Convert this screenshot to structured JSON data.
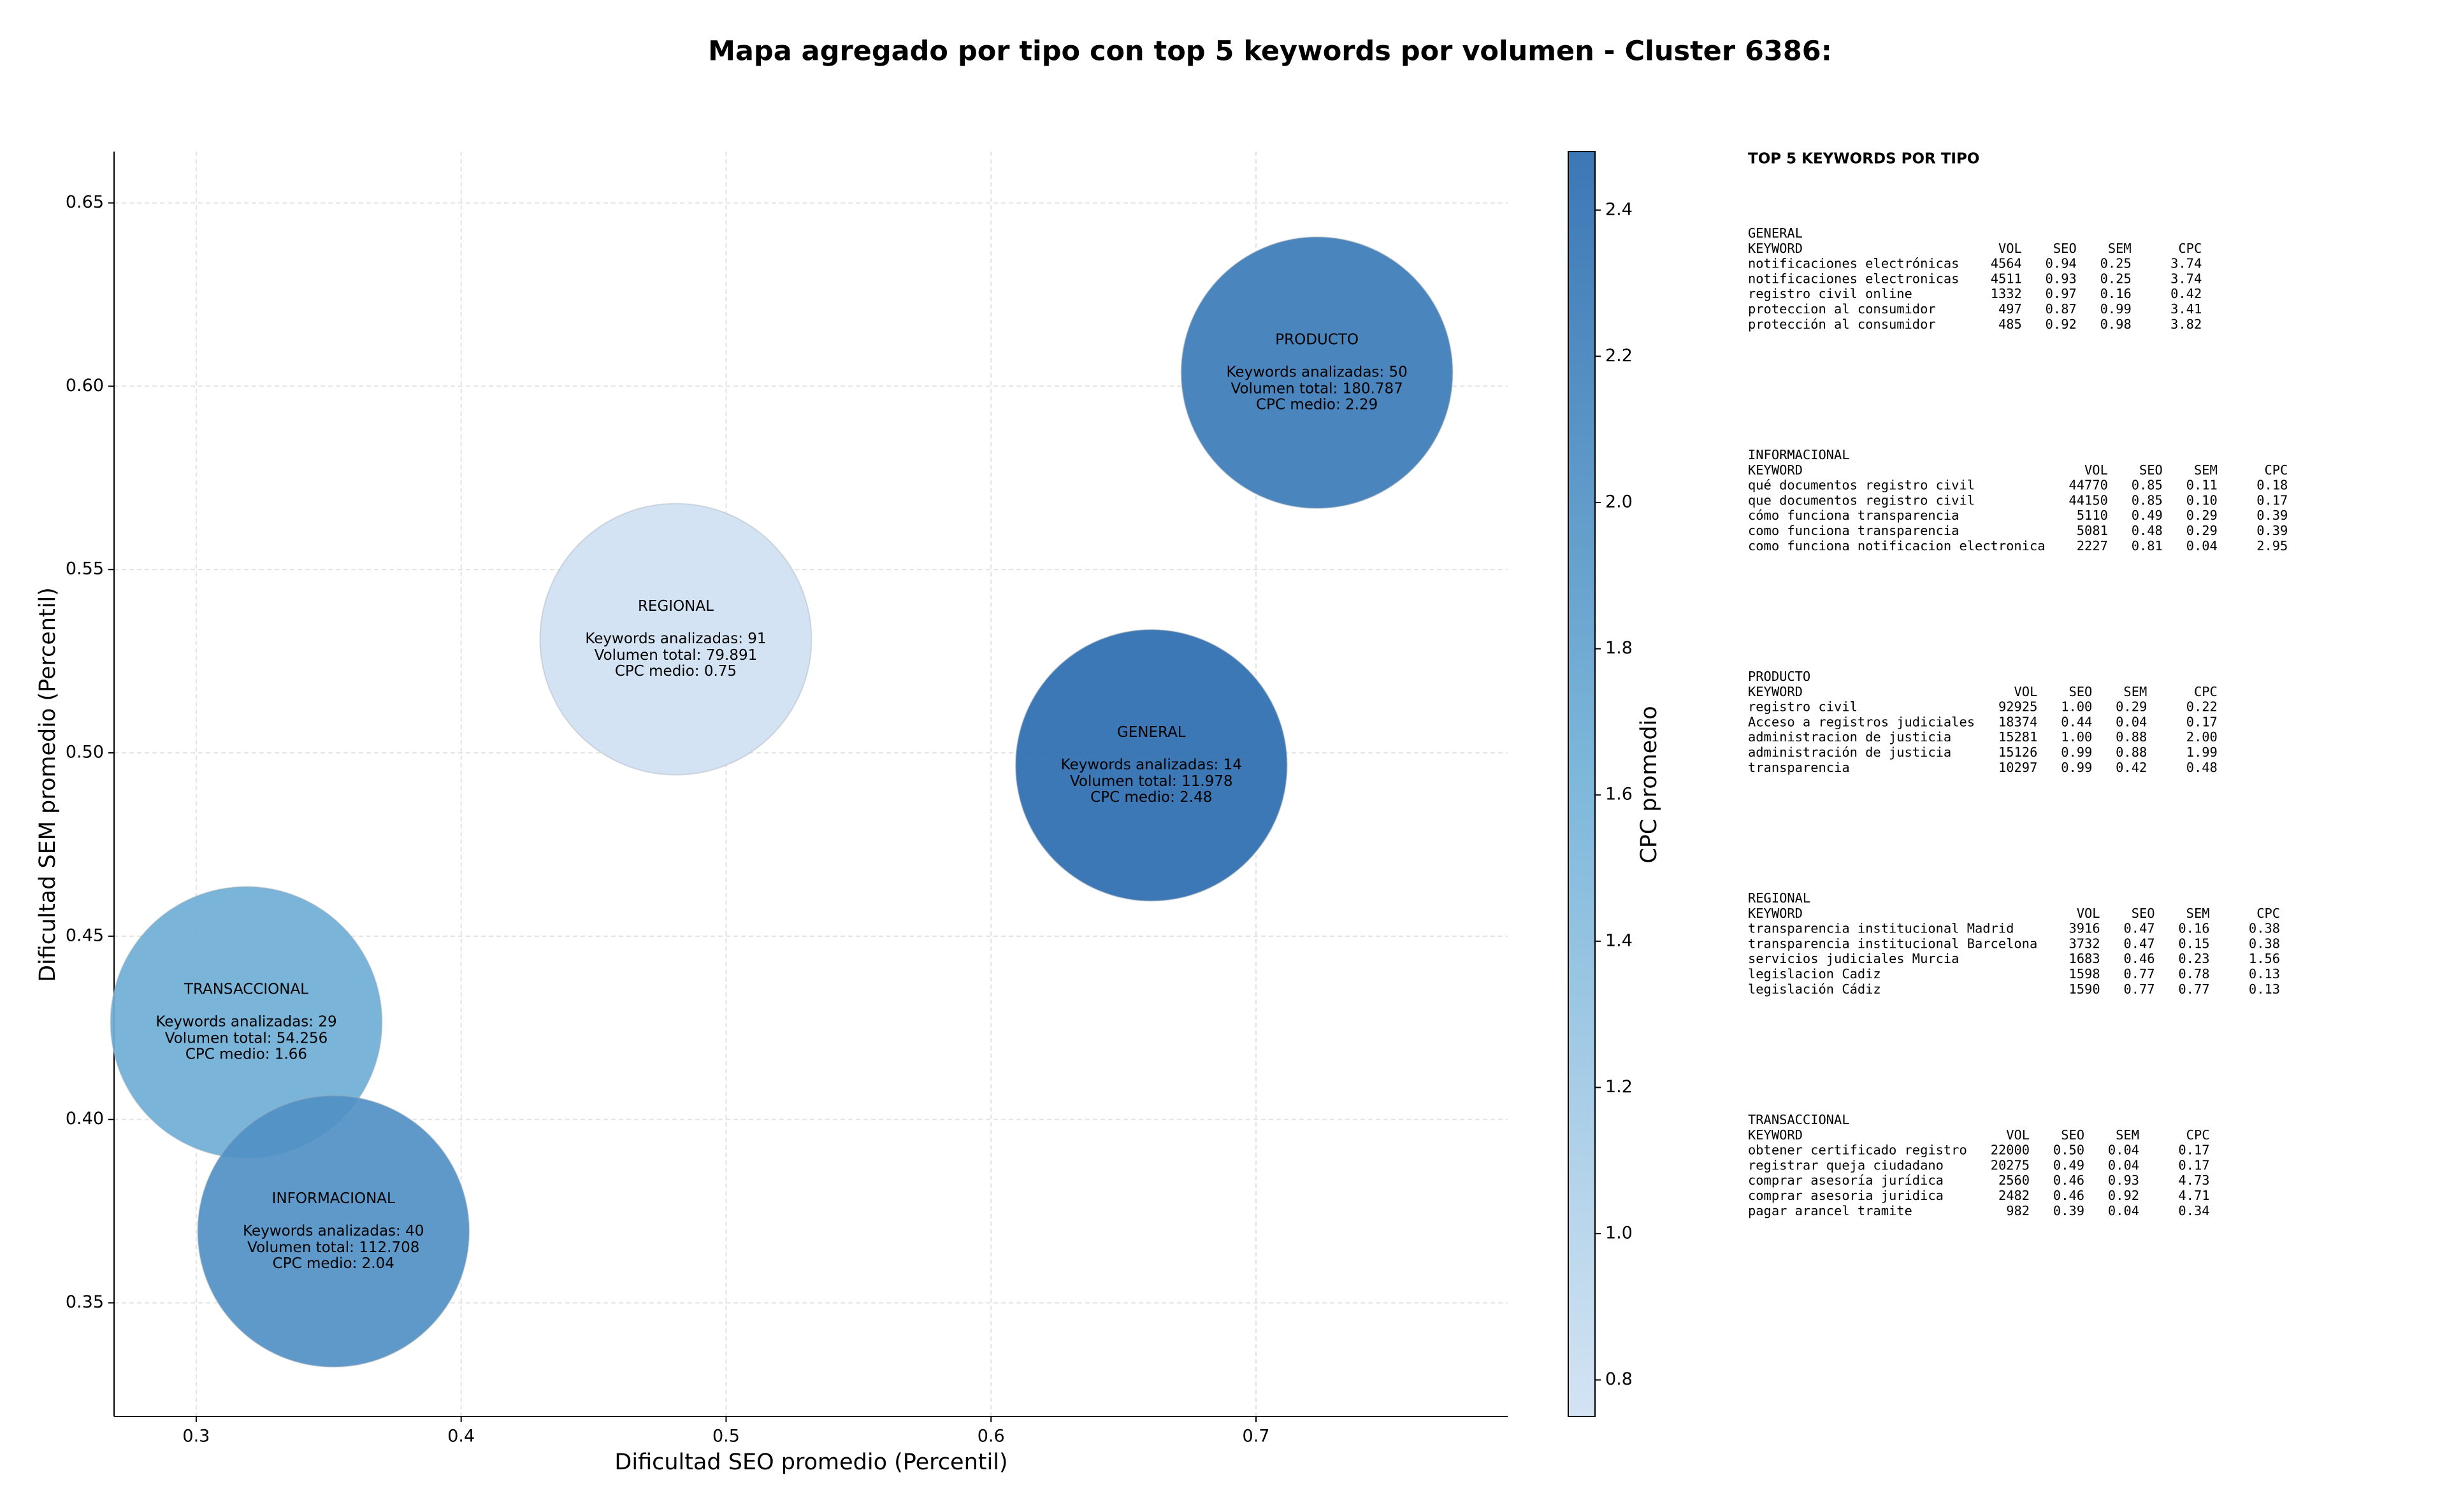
{
  "chart_data": {
    "type": "bubble",
    "title": "Mapa agregado por tipo con top 5 keywords por volumen - Cluster 6386:",
    "xlabel": "Dificultad SEO promedio (Percentil)",
    "ylabel": "Dificultad SEM promedio (Percentil)",
    "xlim": [
      0.269,
      0.795
    ],
    "ylim": [
      0.319,
      0.664
    ],
    "xticks": [
      0.3,
      0.4,
      0.5,
      0.6,
      0.7
    ],
    "yticks": [
      0.35,
      {
        "value": 0.4,
        "label": "0.40"
      },
      0.45,
      {
        "value": 0.5,
        "label": "0.50"
      },
      0.55,
      {
        "value": 0.6,
        "label": "0.60"
      },
      0.65
    ],
    "grid": true,
    "categories": [
      "GENERAL",
      "PRODUCTO",
      "REGIONAL",
      "TRANSACCIONAL",
      "INFORMACIONAL"
    ],
    "x": [
      0.6605,
      0.723,
      0.481,
      0.3189,
      0.3518
    ],
    "y": [
      0.4966,
      0.6037,
      0.531,
      0.4265,
      0.3695
    ],
    "cpc": [
      2.48,
      2.29,
      0.75,
      1.66,
      2.04
    ],
    "keywords_labels": [
      "Keywords analizadas: 14",
      "Keywords analizadas: 50",
      "Keywords analizadas: 91",
      "Keywords analizadas: 29",
      "Keywords analizadas: 40"
    ],
    "volume_labels": [
      "Volumen total: 11.978",
      "Volumen total: 180.787",
      "Volumen total: 79.891",
      "Volumen total: 54.256",
      "Volumen total: 112.708"
    ],
    "cpc_labels": [
      "CPC medio: 2.48",
      "CPC medio: 2.29",
      "CPC medio: 0.75",
      "CPC medio: 1.66",
      "CPC medio: 2.04"
    ],
    "colorbar_label": "CPC promedio",
    "clim": [
      0.75,
      2.48
    ],
    "cticks": [
      0.8,
      {
        "value": 1.0,
        "label": "1.0"
      },
      1.2,
      1.4,
      1.6,
      1.8,
      {
        "value": 2.0,
        "label": "2.0"
      },
      2.2,
      2.4
    ],
    "cmap": [
      "#d0e1f2",
      "#73b2d8",
      "#2b6caf"
    ]
  },
  "keyword_panel": {
    "title": "TOP 5 KEYWORDS POR TIPO",
    "tables": [
      {
        "group": "GENERAL",
        "columns": [
          "KEYWORD",
          "VOL",
          "SEO",
          "SEM",
          "CPC"
        ],
        "rows": [
          [
            "notificaciones electrónicas",
            "4564",
            "0.94",
            "0.25",
            "3.74"
          ],
          [
            "notificaciones electronicas",
            "4511",
            "0.93",
            "0.25",
            "3.74"
          ],
          [
            "registro civil online",
            "1332",
            "0.97",
            "0.16",
            "0.42"
          ],
          [
            "proteccion al consumidor",
            "497",
            "0.87",
            "0.99",
            "3.41"
          ],
          [
            "protección al consumidor",
            "485",
            "0.92",
            "0.98",
            "3.82"
          ]
        ]
      },
      {
        "group": "INFORMACIONAL",
        "columns": [
          "KEYWORD",
          "VOL",
          "SEO",
          "SEM",
          "CPC"
        ],
        "rows": [
          [
            "qué documentos registro civil",
            "44770",
            "0.85",
            "0.11",
            "0.18"
          ],
          [
            "que documentos registro civil",
            "44150",
            "0.85",
            "0.10",
            "0.17"
          ],
          [
            "cómo funciona transparencia",
            "5110",
            "0.49",
            "0.29",
            "0.39"
          ],
          [
            "como funciona transparencia",
            "5081",
            "0.48",
            "0.29",
            "0.39"
          ],
          [
            "como funciona notificacion electronica",
            "2227",
            "0.81",
            "0.04",
            "2.95"
          ]
        ]
      },
      {
        "group": "PRODUCTO",
        "columns": [
          "KEYWORD",
          "VOL",
          "SEO",
          "SEM",
          "CPC"
        ],
        "rows": [
          [
            "registro civil",
            "92925",
            "1.00",
            "0.29",
            "0.22"
          ],
          [
            "Acceso a registros judiciales",
            "18374",
            "0.44",
            "0.04",
            "0.17"
          ],
          [
            "administracion de justicia",
            "15281",
            "1.00",
            "0.88",
            "2.00"
          ],
          [
            "administración de justicia",
            "15126",
            "0.99",
            "0.88",
            "1.99"
          ],
          [
            "transparencia",
            "10297",
            "0.99",
            "0.42",
            "0.48"
          ]
        ]
      },
      {
        "group": "REGIONAL",
        "columns": [
          "KEYWORD",
          "VOL",
          "SEO",
          "SEM",
          "CPC"
        ],
        "rows": [
          [
            "transparencia institucional Madrid",
            "3916",
            "0.47",
            "0.16",
            "0.38"
          ],
          [
            "transparencia institucional Barcelona",
            "3732",
            "0.47",
            "0.15",
            "0.38"
          ],
          [
            "servicios judiciales Murcia",
            "1683",
            "0.46",
            "0.23",
            "1.56"
          ],
          [
            "legislacion Cadiz",
            "1598",
            "0.77",
            "0.78",
            "0.13"
          ],
          [
            "legislación Cádiz",
            "1590",
            "0.77",
            "0.77",
            "0.13"
          ]
        ]
      },
      {
        "group": "TRANSACCIONAL",
        "columns": [
          "KEYWORD",
          "VOL",
          "SEO",
          "SEM",
          "CPC"
        ],
        "rows": [
          [
            "obtener certificado registro",
            "22000",
            "0.50",
            "0.04",
            "0.17"
          ],
          [
            "registrar queja ciudadano",
            "20275",
            "0.49",
            "0.04",
            "0.17"
          ],
          [
            "comprar asesoría jurídica",
            "2560",
            "0.46",
            "0.93",
            "4.73"
          ],
          [
            "comprar asesoria juridica",
            "2482",
            "0.46",
            "0.92",
            "4.71"
          ],
          [
            "pagar arancel tramite",
            "982",
            "0.39",
            "0.04",
            "0.34"
          ]
        ]
      }
    ]
  }
}
